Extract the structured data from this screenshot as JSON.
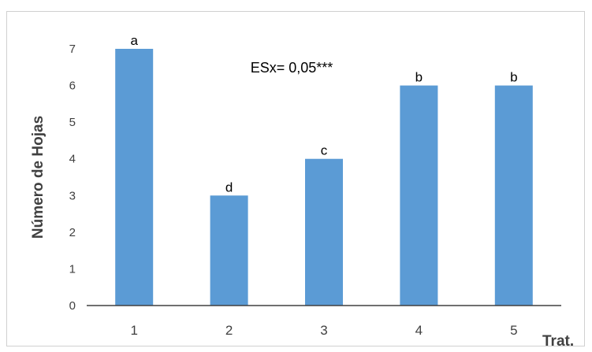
{
  "chart_data": {
    "type": "bar",
    "categories": [
      "1",
      "2",
      "3",
      "4",
      "5"
    ],
    "values": [
      7,
      3,
      4,
      6,
      6
    ],
    "bar_labels": [
      "a",
      "d",
      "c",
      "b",
      "b"
    ],
    "annotation": "ESx= 0,05***",
    "xlabel": "Trat.",
    "ylabel": "Número de Hojas",
    "ylim": [
      0,
      7
    ],
    "yticks": [
      0,
      1,
      2,
      3,
      4,
      5,
      6,
      7
    ],
    "grid": false,
    "bar_color": "#5b9bd5",
    "axis_color": "#404040"
  }
}
